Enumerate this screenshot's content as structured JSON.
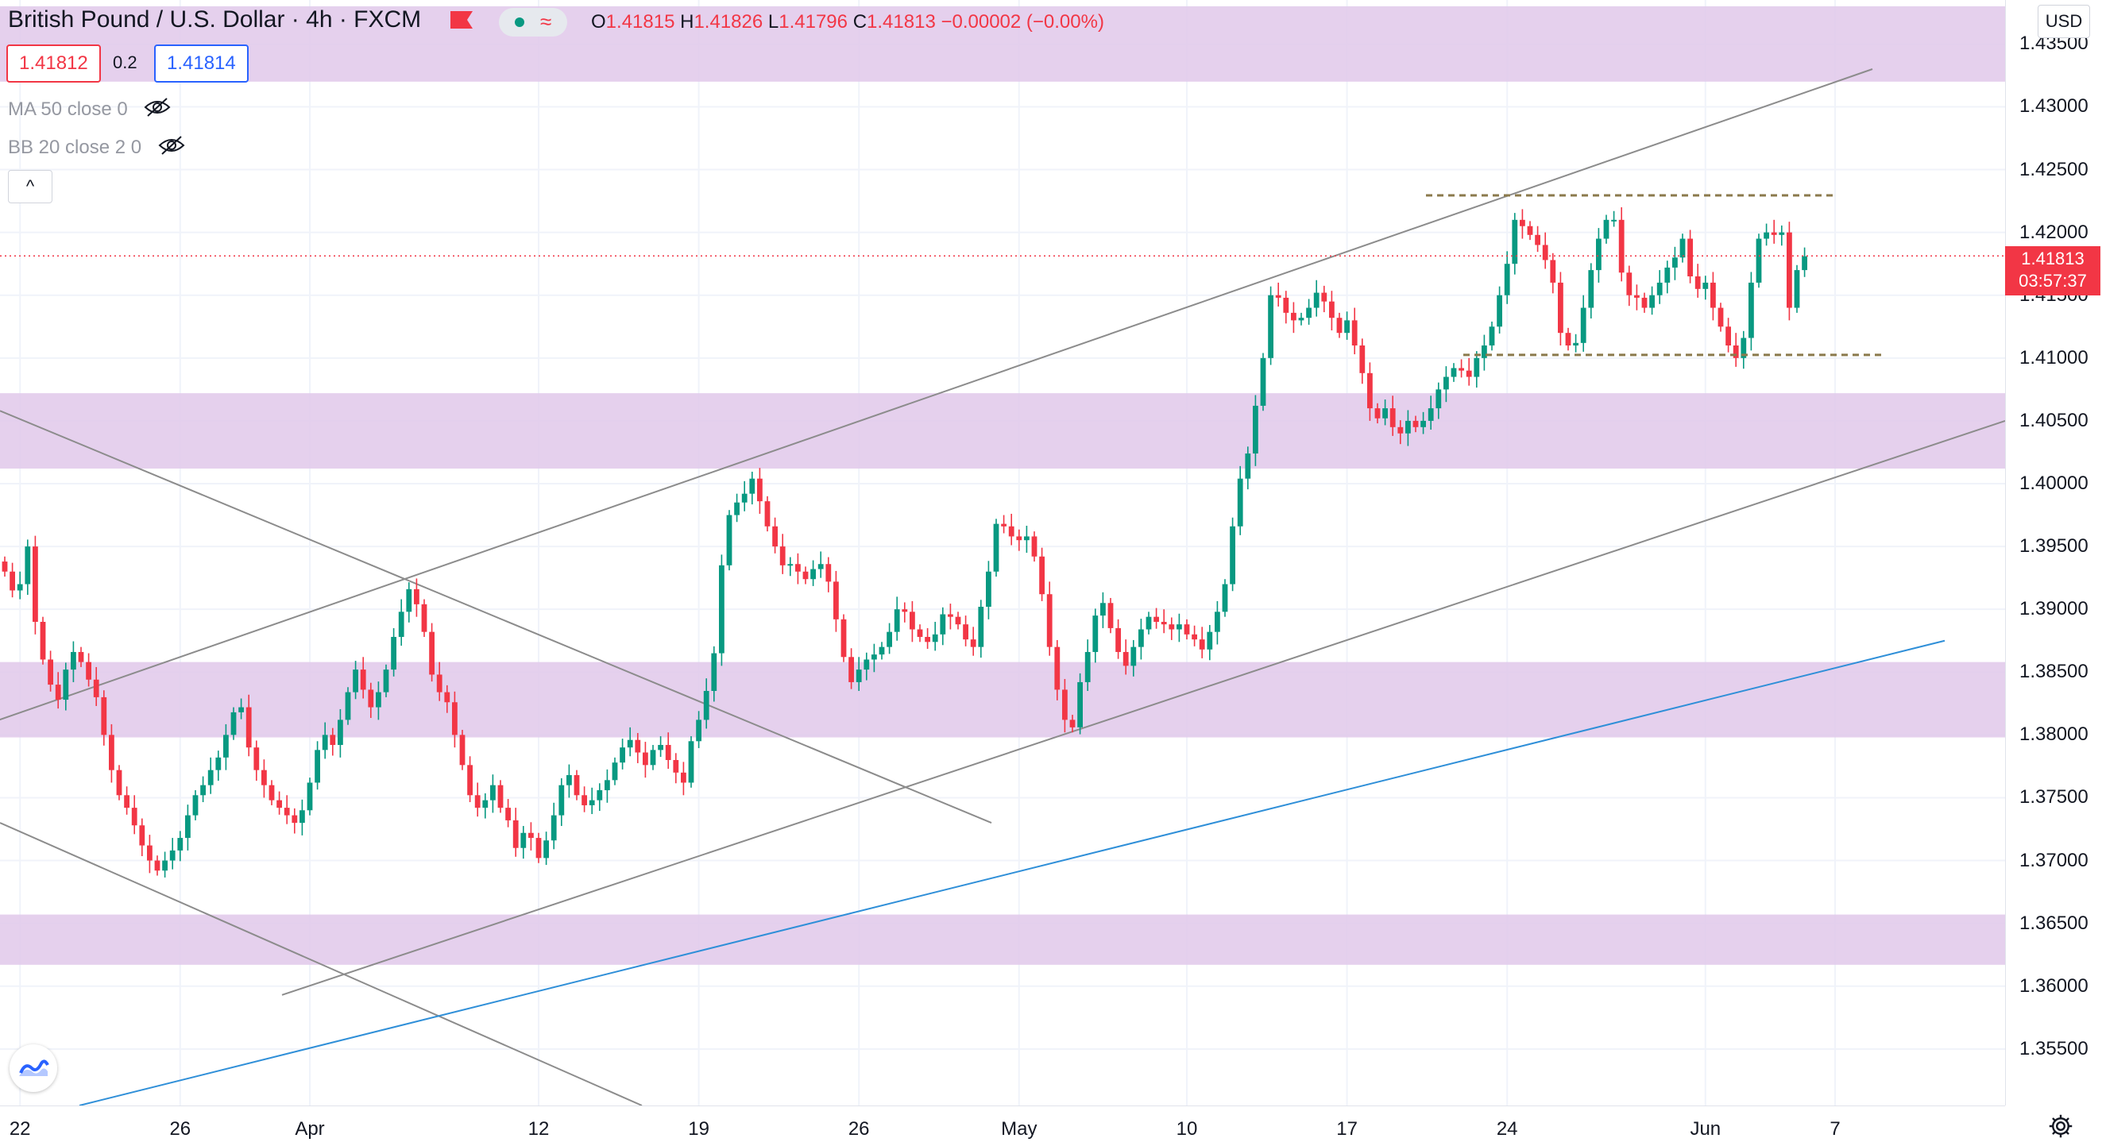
{
  "header": {
    "symbol_title": "British Pound / U.S. Dollar · 4h · FXCM",
    "ohlc": {
      "open_key": "O",
      "open": "1.41815",
      "high_key": "H",
      "high": "1.41826",
      "low_key": "L",
      "low": "1.41796",
      "close_key": "C",
      "close": "1.41813",
      "change": "−0.00002 (−0.00%)"
    },
    "sell_price": "1.41812",
    "spread": "0.2",
    "buy_price": "1.41814"
  },
  "indicators": [
    {
      "label": "MA 50 close 0"
    },
    {
      "label": "BB 20 close 2 0"
    }
  ],
  "collapse_label": "^",
  "currency_button": "USD",
  "last_price_label": {
    "price": "1.41813",
    "countdown": "03:57:37"
  },
  "colors": {
    "up": "#089981",
    "down": "#f23645",
    "zone": "#e1c8ea",
    "blue_line": "#2f8fd8",
    "gray_line": "#8c8c8c",
    "dashed": "#8b7a4c",
    "accent": "#2962ff"
  },
  "icons": [
    "eye-hidden-icon",
    "chevron-up-icon",
    "gear-icon",
    "tradingview-logo-icon",
    "flag-icon"
  ],
  "chart_data": {
    "type": "candlestick",
    "title": "British Pound / U.S. Dollar · 4h · FXCM",
    "ylim": [
      1.3505,
      1.4385
    ],
    "price_ticks": [
      "1.43500",
      "1.43000",
      "1.42500",
      "1.42000",
      "1.41500",
      "1.41000",
      "1.40500",
      "1.40000",
      "1.39500",
      "1.39000",
      "1.38500",
      "1.38000",
      "1.37500",
      "1.37000",
      "1.36500",
      "1.36000",
      "1.35500"
    ],
    "time_ticks": [
      {
        "label": "22",
        "idx": 2
      },
      {
        "label": "26",
        "idx": 23
      },
      {
        "label": "Apr",
        "idx": 40
      },
      {
        "label": "12",
        "idx": 70
      },
      {
        "label": "19",
        "idx": 91
      },
      {
        "label": "26",
        "idx": 112
      },
      {
        "label": "May",
        "idx": 133
      },
      {
        "label": "10",
        "idx": 155
      },
      {
        "label": "17",
        "idx": 176
      },
      {
        "label": "24",
        "idx": 197
      },
      {
        "label": "Jun",
        "idx": 223
      },
      {
        "label": "7",
        "idx": 240
      }
    ],
    "bars_x_range": [
      0,
      247
    ],
    "zones": [
      [
        1.432,
        1.438
      ],
      [
        1.4012,
        1.4072
      ],
      [
        1.3798,
        1.3858
      ],
      [
        1.3617,
        1.3657
      ]
    ],
    "last_price": 1.41813,
    "closes": [
      1.393,
      1.3915,
      1.392,
      1.395,
      1.389,
      1.386,
      1.384,
      1.3828,
      1.3852,
      1.3866,
      1.3858,
      1.3844,
      1.383,
      1.38,
      1.3772,
      1.3752,
      1.3742,
      1.3728,
      1.3712,
      1.37,
      1.3692,
      1.37,
      1.3708,
      1.3718,
      1.3736,
      1.3752,
      1.376,
      1.3772,
      1.3782,
      1.38,
      1.3818,
      1.3822,
      1.379,
      1.3772,
      1.376,
      1.3748,
      1.3742,
      1.3736,
      1.373,
      1.374,
      1.3762,
      1.3788,
      1.38,
      1.3792,
      1.3812,
      1.3834,
      1.3852,
      1.3836,
      1.3822,
      1.3834,
      1.3852,
      1.3878,
      1.3898,
      1.3916,
      1.3904,
      1.3882,
      1.3848,
      1.3834,
      1.3826,
      1.38,
      1.3776,
      1.3752,
      1.3742,
      1.3748,
      1.376,
      1.3742,
      1.3732,
      1.371,
      1.3722,
      1.3718,
      1.3702,
      1.3716,
      1.3736,
      1.376,
      1.3768,
      1.3752,
      1.3744,
      1.3748,
      1.3756,
      1.3764,
      1.3778,
      1.379,
      1.3796,
      1.3786,
      1.3776,
      1.3788,
      1.3792,
      1.378,
      1.377,
      1.3762,
      1.3795,
      1.3812,
      1.3835,
      1.3865,
      1.3935,
      1.3975,
      1.3985,
      1.3992,
      1.4004,
      1.3986,
      1.3966,
      1.395,
      1.3935,
      1.3936,
      1.393,
      1.3924,
      1.3932,
      1.3936,
      1.3922,
      1.3892,
      1.3862,
      1.3842,
      1.3852,
      1.386,
      1.3864,
      1.387,
      1.3882,
      1.39,
      1.3898,
      1.3884,
      1.3878,
      1.3874,
      1.388,
      1.3896,
      1.3894,
      1.3888,
      1.3876,
      1.387,
      1.3902,
      1.393,
      1.3968,
      1.3966,
      1.3958,
      1.3955,
      1.3958,
      1.3942,
      1.3912,
      1.387,
      1.3836,
      1.3812,
      1.3806,
      1.3842,
      1.3866,
      1.3895,
      1.3905,
      1.3885,
      1.3866,
      1.3855,
      1.387,
      1.3884,
      1.3894,
      1.389,
      1.3888,
      1.3884,
      1.3888,
      1.388,
      1.3876,
      1.3868,
      1.3882,
      1.3898,
      1.392,
      1.3966,
      1.4004,
      1.4024,
      1.4062,
      1.41,
      1.415,
      1.4148,
      1.4136,
      1.413,
      1.4132,
      1.414,
      1.4152,
      1.4145,
      1.4132,
      1.412,
      1.413,
      1.411,
      1.4088,
      1.406,
      1.4052,
      1.406,
      1.4045,
      1.404,
      1.405,
      1.4045,
      1.405,
      1.406,
      1.4075,
      1.4085,
      1.4092,
      1.409,
      1.4085,
      1.41,
      1.411,
      1.4125,
      1.415,
      1.4175,
      1.421,
      1.4205,
      1.4198,
      1.419,
      1.4178,
      1.416,
      1.412,
      1.411,
      1.4112,
      1.414,
      1.417,
      1.4195,
      1.421,
      1.421,
      1.4168,
      1.415,
      1.4148,
      1.414,
      1.415,
      1.416,
      1.4172,
      1.418,
      1.4195,
      1.4165,
      1.4155,
      1.416,
      1.414,
      1.4125,
      1.411,
      1.41,
      1.4116,
      1.416,
      1.4195,
      1.42,
      1.4198,
      1.42,
      1.414,
      1.417,
      1.4181
    ]
  }
}
